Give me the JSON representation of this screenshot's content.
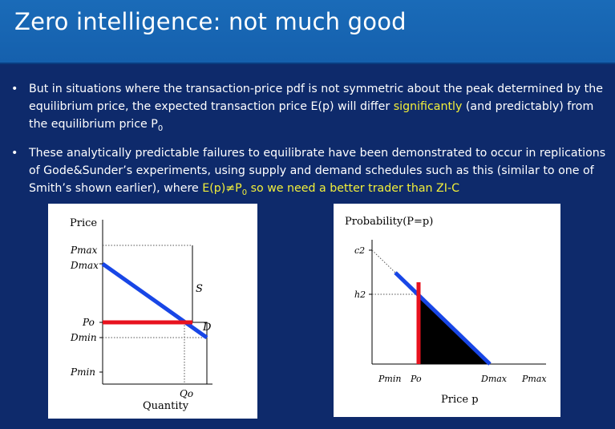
{
  "slide": {
    "title": "Zero intelligence: not much good",
    "bullets": [
      {
        "parts": [
          "But in situations where the transaction-price pdf is not symmetric about the peak determined by the equilibrium price, the expected transaction price E(p) will differ ",
          "significantly",
          " (and predictably) from the equilibrium price P",
          "0"
        ]
      },
      {
        "parts": [
          "These analytically predictable failures to equilibrate have been demonstrated to occur in replications of Gode&Sunder’s experiments, using supply and demand schedules such as this (similar to one of Smith’s shown earlier), where ",
          "E(p)≠P",
          "0",
          " so we need a better trader than ZI-C"
        ]
      }
    ],
    "colors": {
      "title_bar": "#1a6bb8",
      "background": "#0e2a6b",
      "highlight": "#f2ef3a",
      "demand_line": "#1846e6",
      "price_line": "#e8121e"
    }
  },
  "figure_left": {
    "y_axis_title": "Price",
    "x_axis_title": "Quantity",
    "ticks_y": [
      "Pmax",
      "Dmax",
      "Po",
      "Dmin",
      "Pmin"
    ],
    "ticks_x": [
      "Qo"
    ],
    "curve_labels": {
      "supply": "S",
      "demand": "D"
    }
  },
  "figure_right": {
    "y_axis_title": "Probability(P=p)",
    "x_axis_title": "Price p",
    "ticks_y": [
      "c2",
      "h2"
    ],
    "ticks_x": [
      "Pmin",
      "Po",
      "Dmax",
      "Pmax"
    ]
  }
}
